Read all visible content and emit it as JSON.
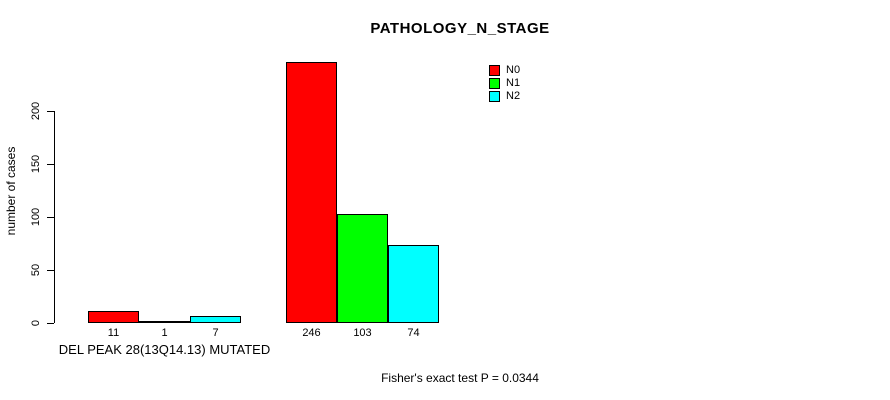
{
  "chart_data": {
    "type": "bar",
    "title": "PATHOLOGY_N_STAGE",
    "xlabel": "",
    "ylabel": "number of cases",
    "ylim": [
      0,
      200
    ],
    "yticks": [
      0,
      50,
      100,
      150,
      200
    ],
    "grid": false,
    "legend_position": "top-right",
    "categories": [
      "DEL PEAK 28(13Q14.13) MUTATED",
      ""
    ],
    "series": [
      {
        "name": "N0",
        "color": "#FF0000",
        "values": [
          11,
          246
        ]
      },
      {
        "name": "N1",
        "color": "#00FF00",
        "values": [
          1,
          103
        ]
      },
      {
        "name": "N2",
        "color": "#00FFFF",
        "values": [
          7,
          74
        ]
      }
    ],
    "bar_value_labels": [
      [
        11,
        1,
        7
      ],
      [
        246,
        103,
        74
      ]
    ],
    "annotation": "Fisher's exact test P = 0.0344"
  },
  "colors": {
    "background": "#FFFFFF",
    "bar_border": "#000000",
    "axis": "#000000",
    "text": "#000000"
  }
}
